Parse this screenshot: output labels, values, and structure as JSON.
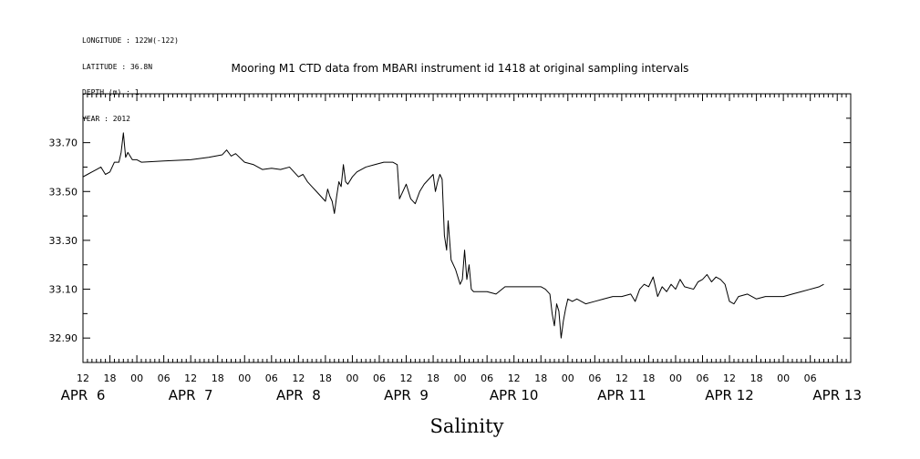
{
  "header": {
    "lines": [
      "LONGITUDE : 122W(-122)",
      "LATITUDE : 36.8N",
      "DEPTH (m) : 1",
      "YEAR : 2012"
    ]
  },
  "chart_data": {
    "type": "line",
    "title": "Mooring M1 CTD data from MBARI instrument id 1418 at original sampling intervals",
    "xlabel": "Salinity",
    "ylabel": "",
    "ylim": [
      32.8,
      33.9
    ],
    "xlim": [
      "2012-04-06T12:00",
      "2012-04-13T15:00"
    ],
    "y_ticks": [
      "33.70",
      "33.50",
      "33.30",
      "33.10",
      "32.90"
    ],
    "y_tick_values": [
      33.7,
      33.5,
      33.3,
      33.1,
      32.9
    ],
    "x_hour_ticks": [
      {
        "t": "2012-04-06T12:00",
        "label": "12"
      },
      {
        "t": "2012-04-06T18:00",
        "label": "18"
      },
      {
        "t": "2012-04-07T00:00",
        "label": "00"
      },
      {
        "t": "2012-04-07T06:00",
        "label": "06"
      },
      {
        "t": "2012-04-07T12:00",
        "label": "12"
      },
      {
        "t": "2012-04-07T18:00",
        "label": "18"
      },
      {
        "t": "2012-04-08T00:00",
        "label": "00"
      },
      {
        "t": "2012-04-08T06:00",
        "label": "06"
      },
      {
        "t": "2012-04-08T12:00",
        "label": "12"
      },
      {
        "t": "2012-04-08T18:00",
        "label": "18"
      },
      {
        "t": "2012-04-09T00:00",
        "label": "00"
      },
      {
        "t": "2012-04-09T06:00",
        "label": "06"
      },
      {
        "t": "2012-04-09T12:00",
        "label": "12"
      },
      {
        "t": "2012-04-09T18:00",
        "label": "18"
      },
      {
        "t": "2012-04-10T00:00",
        "label": "00"
      },
      {
        "t": "2012-04-10T06:00",
        "label": "06"
      },
      {
        "t": "2012-04-10T12:00",
        "label": "12"
      },
      {
        "t": "2012-04-10T18:00",
        "label": "18"
      },
      {
        "t": "2012-04-11T00:00",
        "label": "00"
      },
      {
        "t": "2012-04-11T06:00",
        "label": "06"
      },
      {
        "t": "2012-04-11T12:00",
        "label": "12"
      },
      {
        "t": "2012-04-11T18:00",
        "label": "18"
      },
      {
        "t": "2012-04-12T00:00",
        "label": "00"
      },
      {
        "t": "2012-04-12T06:00",
        "label": "06"
      },
      {
        "t": "2012-04-12T12:00",
        "label": "12"
      },
      {
        "t": "2012-04-12T18:00",
        "label": "18"
      },
      {
        "t": "2012-04-13T00:00",
        "label": "00"
      },
      {
        "t": "2012-04-13T06:00",
        "label": "06"
      }
    ],
    "x_day_labels": [
      {
        "t": "2012-04-06T12:00",
        "label": "APR  6"
      },
      {
        "t": "2012-04-07T12:00",
        "label": "APR  7"
      },
      {
        "t": "2012-04-08T12:00",
        "label": "APR  8"
      },
      {
        "t": "2012-04-09T12:00",
        "label": "APR  9"
      },
      {
        "t": "2012-04-10T12:00",
        "label": "APR 10"
      },
      {
        "t": "2012-04-11T12:00",
        "label": "APR 11"
      },
      {
        "t": "2012-04-12T12:00",
        "label": "APR 12"
      },
      {
        "t": "2012-04-13T12:00",
        "label": "APR 13"
      }
    ],
    "grid": false,
    "series": [
      {
        "color": "#000000",
        "points": [
          [
            "2012-04-06T12:00",
            33.56
          ],
          [
            "2012-04-06T13:00",
            33.57
          ],
          [
            "2012-04-06T14:00",
            33.58
          ],
          [
            "2012-04-06T15:00",
            33.59
          ],
          [
            "2012-04-06T16:00",
            33.6
          ],
          [
            "2012-04-06T17:00",
            33.57
          ],
          [
            "2012-04-06T18:00",
            33.58
          ],
          [
            "2012-04-06T19:00",
            33.62
          ],
          [
            "2012-04-06T20:00",
            33.62
          ],
          [
            "2012-04-06T20:30",
            33.66
          ],
          [
            "2012-04-06T21:00",
            33.74
          ],
          [
            "2012-04-06T21:30",
            33.64
          ],
          [
            "2012-04-06T22:00",
            33.66
          ],
          [
            "2012-04-06T23:00",
            33.63
          ],
          [
            "2012-04-07T00:00",
            33.63
          ],
          [
            "2012-04-07T01:00",
            33.62
          ],
          [
            "2012-04-07T06:00",
            33.625
          ],
          [
            "2012-04-07T12:00",
            33.63
          ],
          [
            "2012-04-07T16:00",
            33.64
          ],
          [
            "2012-04-07T19:00",
            33.65
          ],
          [
            "2012-04-07T20:00",
            33.67
          ],
          [
            "2012-04-07T21:00",
            33.645
          ],
          [
            "2012-04-07T22:00",
            33.655
          ],
          [
            "2012-04-08T00:00",
            33.62
          ],
          [
            "2012-04-08T02:00",
            33.61
          ],
          [
            "2012-04-08T04:00",
            33.59
          ],
          [
            "2012-04-08T06:00",
            33.595
          ],
          [
            "2012-04-08T08:00",
            33.59
          ],
          [
            "2012-04-08T10:00",
            33.6
          ],
          [
            "2012-04-08T11:00",
            33.58
          ],
          [
            "2012-04-08T12:00",
            33.56
          ],
          [
            "2012-04-08T13:00",
            33.57
          ],
          [
            "2012-04-08T14:00",
            33.54
          ],
          [
            "2012-04-08T15:00",
            33.52
          ],
          [
            "2012-04-08T16:00",
            33.5
          ],
          [
            "2012-04-08T17:00",
            33.48
          ],
          [
            "2012-04-08T18:00",
            33.46
          ],
          [
            "2012-04-08T18:30",
            33.51
          ],
          [
            "2012-04-08T19:00",
            33.48
          ],
          [
            "2012-04-08T19:30",
            33.46
          ],
          [
            "2012-04-08T20:00",
            33.41
          ],
          [
            "2012-04-08T20:30",
            33.48
          ],
          [
            "2012-04-08T21:00",
            33.54
          ],
          [
            "2012-04-08T21:30",
            33.52
          ],
          [
            "2012-04-08T22:00",
            33.61
          ],
          [
            "2012-04-08T22:30",
            33.54
          ],
          [
            "2012-04-08T23:00",
            33.53
          ],
          [
            "2012-04-09T00:00",
            33.56
          ],
          [
            "2012-04-09T01:00",
            33.58
          ],
          [
            "2012-04-09T03:00",
            33.6
          ],
          [
            "2012-04-09T05:00",
            33.61
          ],
          [
            "2012-04-09T07:00",
            33.62
          ],
          [
            "2012-04-09T09:00",
            33.62
          ],
          [
            "2012-04-09T10:00",
            33.61
          ],
          [
            "2012-04-09T10:30",
            33.47
          ],
          [
            "2012-04-09T11:00",
            33.49
          ],
          [
            "2012-04-09T12:00",
            33.53
          ],
          [
            "2012-04-09T13:00",
            33.47
          ],
          [
            "2012-04-09T14:00",
            33.45
          ],
          [
            "2012-04-09T15:00",
            33.5
          ],
          [
            "2012-04-09T16:00",
            33.53
          ],
          [
            "2012-04-09T17:00",
            33.55
          ],
          [
            "2012-04-09T18:00",
            33.57
          ],
          [
            "2012-04-09T18:30",
            33.5
          ],
          [
            "2012-04-09T19:00",
            33.54
          ],
          [
            "2012-04-09T19:30",
            33.57
          ],
          [
            "2012-04-09T20:00",
            33.55
          ],
          [
            "2012-04-09T20:30",
            33.32
          ],
          [
            "2012-04-09T21:00",
            33.26
          ],
          [
            "2012-04-09T21:20",
            33.38
          ],
          [
            "2012-04-09T22:00",
            33.22
          ],
          [
            "2012-04-09T23:00",
            33.18
          ],
          [
            "2012-04-10T00:00",
            33.12
          ],
          [
            "2012-04-10T00:30",
            33.14
          ],
          [
            "2012-04-10T01:00",
            33.26
          ],
          [
            "2012-04-10T01:30",
            33.14
          ],
          [
            "2012-04-10T02:00",
            33.2
          ],
          [
            "2012-04-10T02:30",
            33.1
          ],
          [
            "2012-04-10T03:00",
            33.09
          ],
          [
            "2012-04-10T06:00",
            33.09
          ],
          [
            "2012-04-10T08:00",
            33.08
          ],
          [
            "2012-04-10T10:00",
            33.11
          ],
          [
            "2012-04-10T14:00",
            33.11
          ],
          [
            "2012-04-10T18:00",
            33.11
          ],
          [
            "2012-04-10T19:00",
            33.1
          ],
          [
            "2012-04-10T20:00",
            33.08
          ],
          [
            "2012-04-10T20:30",
            33.0
          ],
          [
            "2012-04-10T21:00",
            32.95
          ],
          [
            "2012-04-10T21:30",
            33.04
          ],
          [
            "2012-04-10T22:00",
            33.01
          ],
          [
            "2012-04-10T22:30",
            32.9
          ],
          [
            "2012-04-10T23:00",
            32.97
          ],
          [
            "2012-04-10T23:30",
            33.02
          ],
          [
            "2012-04-11T00:00",
            33.06
          ],
          [
            "2012-04-11T01:00",
            33.05
          ],
          [
            "2012-04-11T02:00",
            33.06
          ],
          [
            "2012-04-11T04:00",
            33.04
          ],
          [
            "2012-04-11T06:00",
            33.05
          ],
          [
            "2012-04-11T08:00",
            33.06
          ],
          [
            "2012-04-11T10:00",
            33.07
          ],
          [
            "2012-04-11T12:00",
            33.07
          ],
          [
            "2012-04-11T14:00",
            33.08
          ],
          [
            "2012-04-11T15:00",
            33.05
          ],
          [
            "2012-04-11T16:00",
            33.1
          ],
          [
            "2012-04-11T17:00",
            33.12
          ],
          [
            "2012-04-11T18:00",
            33.11
          ],
          [
            "2012-04-11T19:00",
            33.15
          ],
          [
            "2012-04-11T20:00",
            33.07
          ],
          [
            "2012-04-11T21:00",
            33.11
          ],
          [
            "2012-04-11T22:00",
            33.09
          ],
          [
            "2012-04-11T23:00",
            33.12
          ],
          [
            "2012-04-12T00:00",
            33.1
          ],
          [
            "2012-04-12T01:00",
            33.14
          ],
          [
            "2012-04-12T02:00",
            33.11
          ],
          [
            "2012-04-12T04:00",
            33.1
          ],
          [
            "2012-04-12T05:00",
            33.13
          ],
          [
            "2012-04-12T06:00",
            33.14
          ],
          [
            "2012-04-12T07:00",
            33.16
          ],
          [
            "2012-04-12T08:00",
            33.13
          ],
          [
            "2012-04-12T09:00",
            33.15
          ],
          [
            "2012-04-12T10:00",
            33.14
          ],
          [
            "2012-04-12T11:00",
            33.12
          ],
          [
            "2012-04-12T12:00",
            33.05
          ],
          [
            "2012-04-12T13:00",
            33.04
          ],
          [
            "2012-04-12T14:00",
            33.07
          ],
          [
            "2012-04-12T16:00",
            33.08
          ],
          [
            "2012-04-12T18:00",
            33.06
          ],
          [
            "2012-04-12T20:00",
            33.07
          ],
          [
            "2012-04-12T22:00",
            33.07
          ],
          [
            "2012-04-13T00:00",
            33.07
          ],
          [
            "2012-04-13T02:00",
            33.08
          ],
          [
            "2012-04-13T04:00",
            33.09
          ],
          [
            "2012-04-13T06:00",
            33.1
          ],
          [
            "2012-04-13T08:00",
            33.11
          ],
          [
            "2012-04-13T09:00",
            33.12
          ]
        ]
      }
    ]
  }
}
